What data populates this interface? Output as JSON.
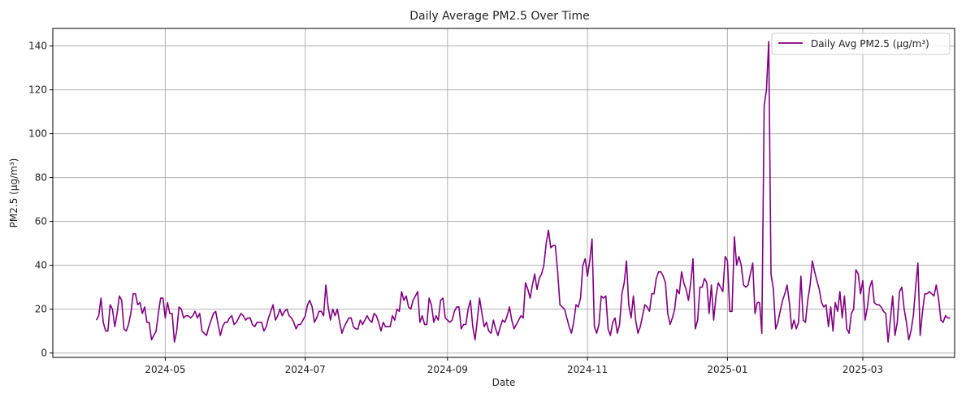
{
  "chart_data": {
    "type": "line",
    "title": "Daily Average PM2.5 Over Time",
    "xlabel": "Date",
    "ylabel": "PM2.5 (µg/m³)",
    "legend": {
      "label": "Daily Avg PM2.5 (µg/m³)",
      "placement": "top-right"
    },
    "grid": true,
    "color": "#800080",
    "xlim": [
      "2024-03-13",
      "2025-04-10"
    ],
    "ylim": [
      -2,
      148
    ],
    "x_ticks": [
      {
        "date": "2024-05-01",
        "label": "2024-05"
      },
      {
        "date": "2024-07-01",
        "label": "2024-07"
      },
      {
        "date": "2024-09-01",
        "label": "2024-09"
      },
      {
        "date": "2024-11-01",
        "label": "2024-11"
      },
      {
        "date": "2025-01-01",
        "label": "2025-01"
      },
      {
        "date": "2025-03-01",
        "label": "2025-03"
      }
    ],
    "y_ticks": [
      0,
      20,
      40,
      60,
      80,
      100,
      120,
      140
    ],
    "series": [
      {
        "name": "Daily Avg PM2.5 (µg/m³)",
        "start_date": "2024-04-01",
        "values": [
          15,
          17,
          25,
          14,
          10,
          10,
          22,
          20,
          12,
          18,
          26,
          24,
          11,
          10,
          13,
          18,
          27,
          27,
          22,
          23,
          18,
          21,
          14,
          14,
          6,
          8,
          10,
          18,
          25,
          25,
          16,
          23,
          18,
          18,
          5,
          10,
          21,
          20,
          16,
          17,
          17,
          16,
          17,
          19,
          16,
          18,
          10,
          9,
          8,
          12,
          15,
          18,
          19,
          13,
          8,
          12,
          14,
          14,
          16,
          17,
          13,
          14,
          16,
          18,
          17,
          15,
          16,
          16,
          13,
          12,
          14,
          14,
          14,
          10,
          12,
          16,
          19,
          22,
          15,
          17,
          20,
          17,
          19,
          20,
          17,
          16,
          14,
          11,
          13,
          13,
          15,
          17,
          22,
          24,
          21,
          14,
          16,
          19,
          19,
          17,
          31,
          21,
          15,
          20,
          17,
          20,
          14,
          9,
          12,
          14,
          16,
          16,
          12,
          11,
          11,
          15,
          13,
          15,
          17,
          15,
          14,
          18,
          17,
          14,
          10,
          14,
          12,
          12,
          12,
          17,
          15,
          20,
          19,
          28,
          24,
          26,
          21,
          20,
          24,
          26,
          28,
          14,
          17,
          13,
          13,
          25,
          22,
          14,
          17,
          15,
          24,
          25,
          16,
          15,
          14,
          15,
          19,
          21,
          21,
          11,
          13,
          13,
          20,
          24,
          12,
          6,
          15,
          25,
          18,
          12,
          14,
          10,
          9,
          15,
          11,
          8,
          12,
          15,
          14,
          17,
          21,
          15,
          11,
          13,
          15,
          17,
          16,
          32,
          29,
          25,
          31,
          36,
          29,
          34,
          36,
          40,
          50,
          56,
          48,
          49,
          49,
          37,
          22,
          21,
          20,
          16,
          12,
          9,
          14,
          22,
          21,
          25,
          40,
          43,
          35,
          42,
          52,
          12,
          9,
          13,
          26,
          25,
          26,
          11,
          8,
          14,
          16,
          9,
          13,
          27,
          32,
          42,
          22,
          16,
          26,
          15,
          9,
          12,
          17,
          22,
          21,
          19,
          27,
          27,
          34,
          37,
          37,
          35,
          32,
          18,
          13,
          16,
          20,
          29,
          27,
          37,
          32,
          29,
          24,
          32,
          43,
          11,
          15,
          30,
          30,
          34,
          32,
          18,
          31,
          15,
          26,
          32,
          30,
          28,
          44,
          42,
          19,
          19,
          53,
          40,
          44,
          40,
          31,
          30,
          31,
          36,
          41,
          18,
          23,
          23,
          9,
          113,
          120,
          142,
          36,
          29,
          11,
          14,
          19,
          24,
          27,
          31,
          23,
          11,
          15,
          11,
          14,
          35,
          15,
          14,
          24,
          31,
          42,
          37,
          33,
          29,
          23,
          21,
          22,
          12,
          21,
          10,
          23,
          19,
          28,
          16,
          26,
          11,
          9,
          18,
          20,
          38,
          36,
          27,
          33,
          15,
          21,
          30,
          33,
          23,
          22,
          22,
          21,
          19,
          18,
          5,
          15,
          26,
          8,
          14,
          28,
          30,
          20,
          14,
          6,
          10,
          17,
          30,
          41,
          8,
          19,
          27,
          27,
          28,
          27,
          26,
          31,
          25,
          15,
          14,
          17,
          16,
          16
        ]
      }
    ]
  }
}
